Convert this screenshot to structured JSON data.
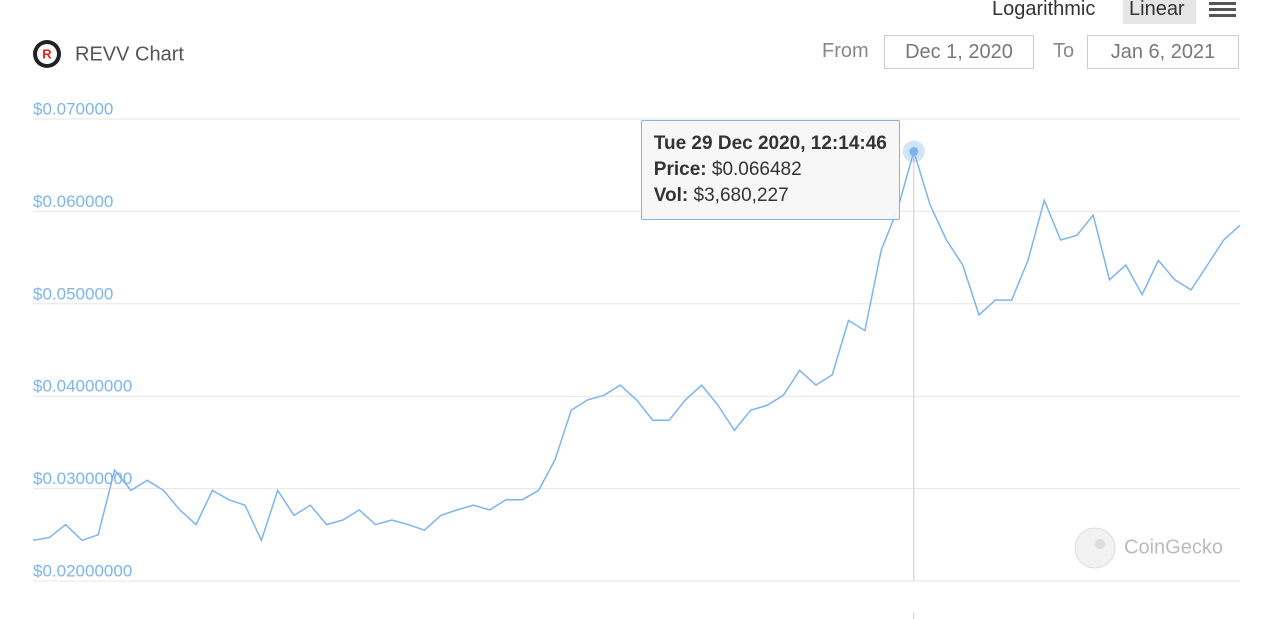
{
  "header": {
    "title": "REVV Chart",
    "scale_options": [
      "Logarithmic",
      "Linear"
    ],
    "from_label": "From",
    "from_date": "Dec 1, 2020",
    "to_label": "To",
    "to_date": "Jan 6, 2021"
  },
  "watermark": "CoinGecko",
  "chart_data": {
    "type": "line",
    "color": "#7cb5ec",
    "values": [
      0.0244,
      0.0247,
      0.0261,
      0.0244,
      0.025,
      0.032,
      0.0298,
      0.0309,
      0.0298,
      0.0277,
      0.0261,
      0.0298,
      0.0288,
      0.0282,
      0.0244,
      0.0298,
      0.0271,
      0.0282,
      0.0261,
      0.0266,
      0.0277,
      0.0261,
      0.0266,
      0.0261,
      0.0255,
      0.0271,
      0.0277,
      0.0282,
      0.0277,
      0.0288,
      0.0288,
      0.0298,
      0.0331,
      0.0385,
      0.0396,
      0.0401,
      0.0412,
      0.0396,
      0.0374,
      0.0374,
      0.0396,
      0.0412,
      0.039,
      0.0363,
      0.0385,
      0.039,
      0.0401,
      0.0428,
      0.0412,
      0.0423,
      0.0482,
      0.0471,
      0.0558,
      0.0602,
      0.066482,
      0.0607,
      0.0569,
      0.0542,
      0.0488,
      0.0504,
      0.0504,
      0.0547,
      0.0612,
      0.0569,
      0.0574,
      0.0596,
      0.0526,
      0.0542,
      0.051,
      0.0547,
      0.0526,
      0.0515,
      0.0542,
      0.0569,
      0.0585
    ],
    "ylim": [
      0.02,
      0.07
    ],
    "yticks": [
      {
        "value": 0.02,
        "label": "$0.02000000"
      },
      {
        "value": 0.03,
        "label": "$0.03000000"
      },
      {
        "value": 0.04,
        "label": "$0.04000000"
      },
      {
        "value": 0.05,
        "label": "$0.050000"
      },
      {
        "value": 0.06,
        "label": "$0.060000"
      },
      {
        "value": 0.07,
        "label": "$0.070000"
      }
    ],
    "grid": true,
    "tooltip": {
      "index": 54,
      "date": "Tue 29 Dec 2020, 12:14:46",
      "price_label": "Price:",
      "price": "$0.066482",
      "vol_label": "Vol:",
      "vol": "$3,680,227"
    }
  }
}
